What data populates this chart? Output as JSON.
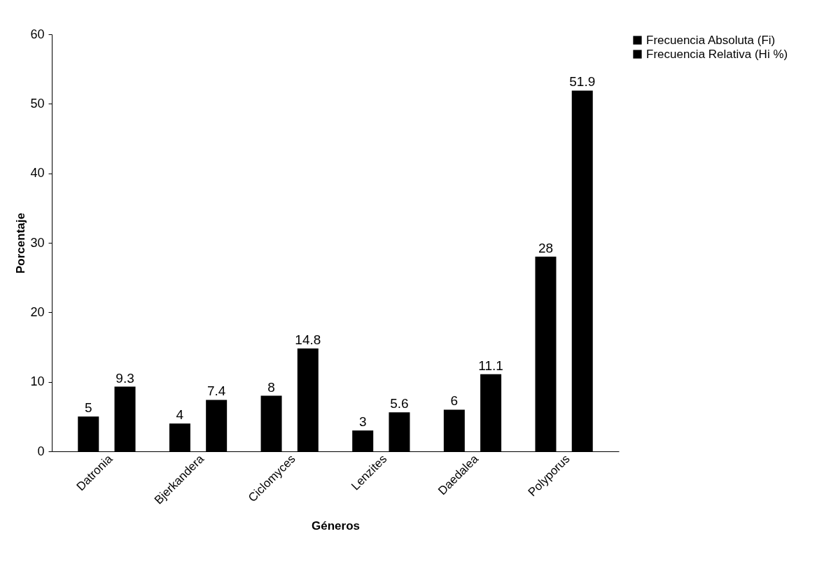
{
  "chart_data": {
    "type": "bar",
    "xlabel": "Géneros",
    "ylabel": "Porcentaje",
    "categories": [
      "Datronia",
      "Bjerkandera",
      "Ciclomyces",
      "Lenzites",
      "Daedalea",
      "Polyporus"
    ],
    "series": [
      {
        "name": "Frecuencia  Absoluta (Fi)",
        "color": "#000000",
        "values": [
          5,
          4,
          8,
          3,
          6,
          28
        ]
      },
      {
        "name": "Frecuencia  Relativa (Hi %)",
        "color": "#000000",
        "values": [
          9.3,
          7.4,
          14.8,
          5.6,
          11.1,
          51.9
        ]
      }
    ],
    "ylim": [
      0,
      60
    ],
    "yticks": [
      0,
      10,
      20,
      30,
      40,
      50,
      60
    ],
    "data_labels": true,
    "legend": "right",
    "grid": false
  }
}
